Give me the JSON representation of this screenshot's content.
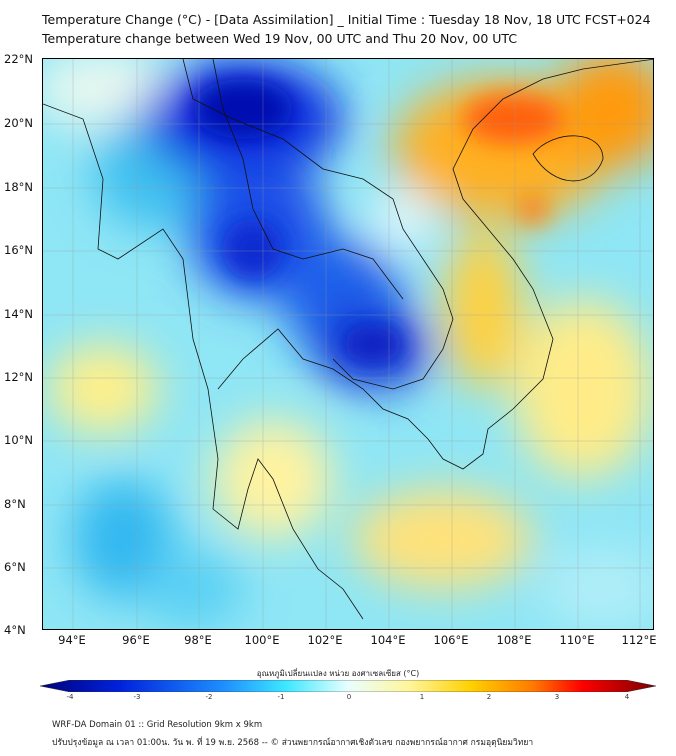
{
  "header": {
    "title_line1": "Temperature Change (°C) - [Data Assimilation] _ Initial Time : Tuesday 18 Nov, 18 UTC FCST+024",
    "title_line2": "Temperature change between Wed 19 Nov, 00 UTC and Thu 20 Nov, 00 UTC"
  },
  "map": {
    "lat_labels": [
      "22°N",
      "20°N",
      "18°N",
      "16°N",
      "14°N",
      "12°N",
      "10°N",
      "8°N",
      "6°N",
      "4°N"
    ],
    "lon_labels": [
      "94°E",
      "96°E",
      "98°E",
      "100°E",
      "102°E",
      "104°E",
      "106°E",
      "108°E",
      "110°E",
      "112°E"
    ]
  },
  "colorbar": {
    "label": "อุณหภูมิเปลี่ยนแปลง หน่วย องศาเซลเซียส (°C)",
    "ticks": [
      "-4",
      "-3",
      "-2",
      "-1",
      "0",
      "1",
      "2",
      "3",
      "4"
    ],
    "colors": [
      "#00007a",
      "#0022dd",
      "#1e90ff",
      "#3ee8ff",
      "#e8ffff",
      "#fff59a",
      "#ffd000",
      "#ff7a00",
      "#ff0000",
      "#7a0000"
    ]
  },
  "footer": {
    "line1": "WRF-DA Domain 01 :: Grid Resolution 9km x 9km",
    "line2": "ปรับปรุงข้อมูล ณ เวลา 01:00น. วัน พ. ที่ 19 พ.ย. 2568 -- © ส่วนพยากรณ์อากาศเชิงตัวเลข กองพยากรณ์อากาศ กรมอุตุนิยมวิทยา"
  }
}
